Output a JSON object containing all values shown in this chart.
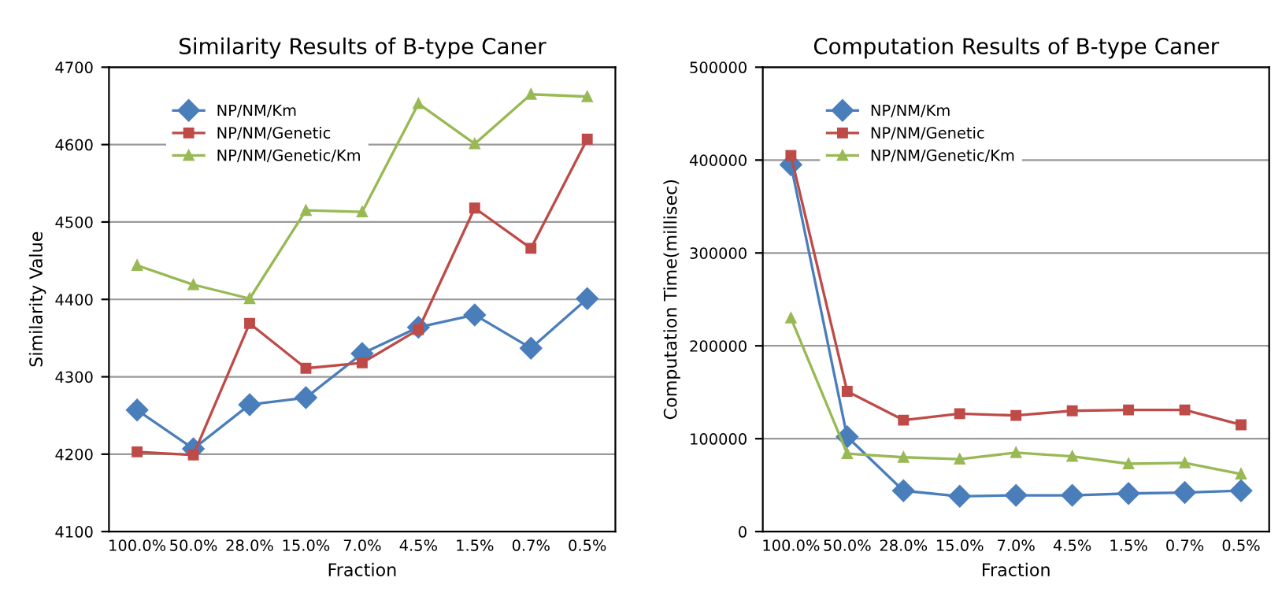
{
  "chart_data": [
    {
      "type": "line",
      "title": "Similarity Results of B-type Caner",
      "xlabel": "Fraction",
      "ylabel": "Similarity Value",
      "categories": [
        "100.0%",
        "50.0%",
        "28.0%",
        "15.0%",
        "7.0%",
        "4.5%",
        "1.5%",
        "0.7%",
        "0.5%"
      ],
      "ylim": [
        4100,
        4700
      ],
      "yticks": [
        4100,
        4200,
        4300,
        4400,
        4500,
        4600,
        4700
      ],
      "grid": "y",
      "legend": "top left",
      "series": [
        {
          "name": "NP/NM/Km",
          "color": "#4a7ebb",
          "marker": "diamond",
          "values": [
            4257,
            4207,
            4264,
            4273,
            4330,
            4364,
            4380,
            4337,
            4401
          ]
        },
        {
          "name": "NP/NM/Genetic",
          "color": "#be4b48",
          "marker": "square",
          "values": [
            4203,
            4199,
            4369,
            4311,
            4318,
            4361,
            4518,
            4466,
            4607
          ]
        },
        {
          "name": "NP/NM/Genetic/Km",
          "color": "#98b954",
          "marker": "triangle",
          "values": [
            4444,
            4419,
            4401,
            4515,
            4513,
            4653,
            4601,
            4665,
            4662
          ]
        }
      ]
    },
    {
      "type": "line",
      "title": "Computation Results of B-type Caner",
      "xlabel": "Fraction",
      "ylabel": "Computation Time(millisec)",
      "categories": [
        "100.0%",
        "50.0%",
        "28.0%",
        "15.0%",
        "7.0%",
        "4.5%",
        "1.5%",
        "0.7%",
        "0.5%"
      ],
      "ylim": [
        0,
        500000
      ],
      "yticks": [
        0,
        100000,
        200000,
        300000,
        400000,
        500000
      ],
      "grid": "y",
      "legend": "top left",
      "series": [
        {
          "name": "NP/NM/Km",
          "color": "#4a7ebb",
          "marker": "diamond",
          "values": [
            395000,
            102000,
            44000,
            38000,
            39000,
            39000,
            41000,
            42000,
            44000
          ]
        },
        {
          "name": "NP/NM/Genetic",
          "color": "#be4b48",
          "marker": "square",
          "values": [
            405000,
            151000,
            120000,
            127000,
            125000,
            130000,
            131000,
            131000,
            115000
          ]
        },
        {
          "name": "NP/NM/Genetic/Km",
          "color": "#98b954",
          "marker": "triangle",
          "values": [
            230000,
            84000,
            80000,
            78000,
            85000,
            81000,
            73000,
            74000,
            62000
          ]
        }
      ]
    }
  ]
}
